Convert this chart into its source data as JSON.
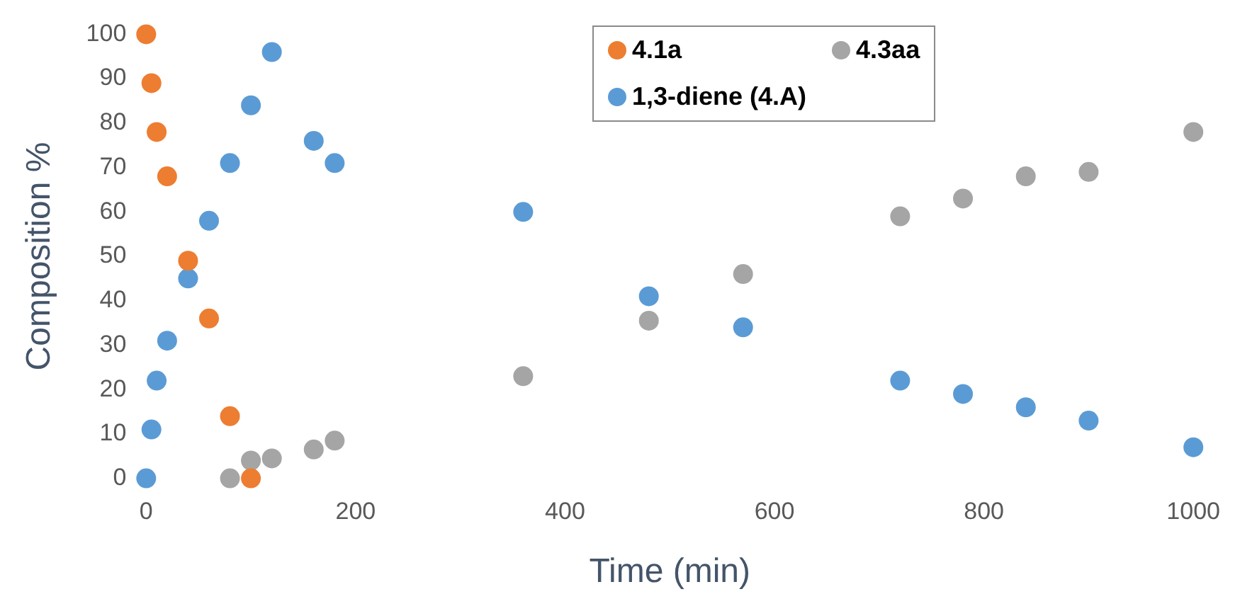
{
  "chart_data": {
    "type": "scatter",
    "xlabel": "Time (min)",
    "ylabel": "Composition %",
    "xlim": [
      0,
      1000
    ],
    "xticks": [
      0,
      200,
      400,
      600,
      800,
      1000
    ],
    "ylim": [
      0,
      100
    ],
    "yticks": [
      0,
      10,
      20,
      30,
      40,
      50,
      60,
      70,
      80,
      90,
      100
    ],
    "grid": false,
    "legend": "top",
    "marker": "circle",
    "series": [
      {
        "name": "4.1a",
        "color": "#ed7d31",
        "x": [
          0,
          5,
          10,
          20,
          40,
          60,
          80,
          100
        ],
        "values": [
          100,
          89,
          78,
          68,
          49,
          36,
          14,
          0
        ]
      },
      {
        "name": "4.3aa",
        "color": "#a5a5a5",
        "x": [
          80,
          100,
          120,
          160,
          180,
          360,
          480,
          570,
          720,
          780,
          840,
          900,
          1000
        ],
        "values": [
          0,
          4,
          4.5,
          6.5,
          8.5,
          23,
          35.5,
          46,
          59,
          63,
          68,
          69,
          78
        ]
      },
      {
        "name": "1,3-diene (4.A)",
        "color": "#5b9bd5",
        "x": [
          0,
          5,
          10,
          20,
          40,
          60,
          80,
          100,
          120,
          160,
          180,
          360,
          480,
          570,
          720,
          780,
          840,
          900,
          1000
        ],
        "values": [
          0,
          11,
          22,
          31,
          45,
          58,
          71,
          84,
          96,
          76,
          71,
          60,
          41,
          34,
          22,
          19,
          16,
          13,
          7
        ]
      }
    ]
  }
}
